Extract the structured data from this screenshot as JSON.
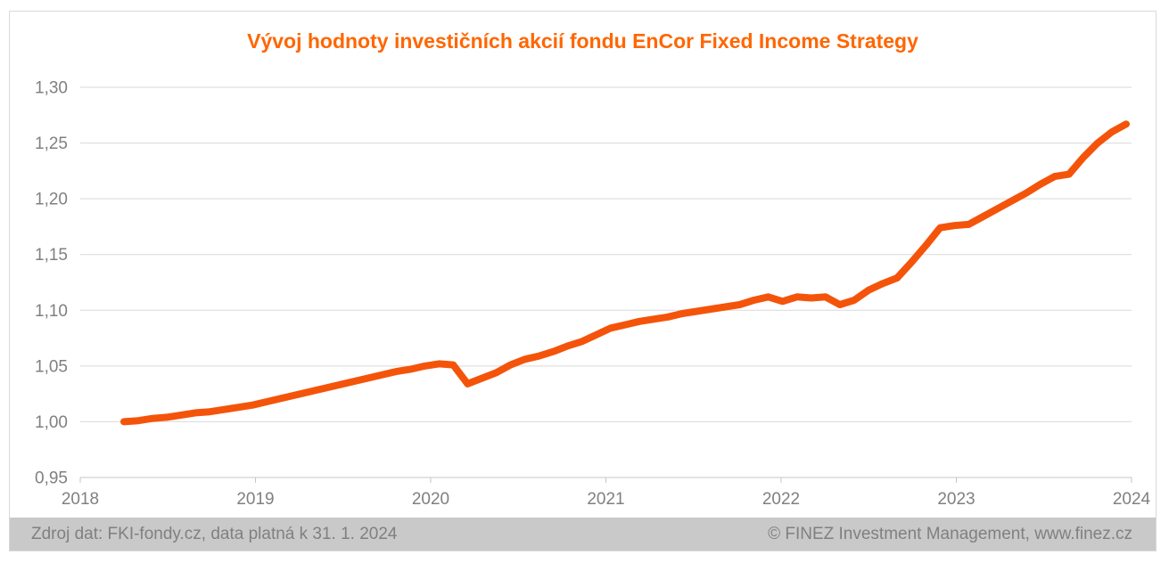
{
  "title": "Vývoj hodnoty investičních akcií fondu EnCor Fixed Income Strategy",
  "footer": {
    "source": "Zdroj dat: FKI-fondy.cz, data platná k 31. 1. 2024",
    "copyright": "© FINEZ Investment Management, www.finez.cz"
  },
  "colors": {
    "title": "#FF6600",
    "line": "#F4540A",
    "gridline": "#D9D9D9",
    "axis_line": "#C6C6C6",
    "axis_text": "#808080",
    "footer_bg": "#C9C9C9",
    "footer_text": "#808080"
  },
  "chart_data": {
    "type": "line",
    "title": "Vývoj hodnoty investičních akcií fondu EnCor Fixed Income Strategy",
    "xlabel": "",
    "ylabel": "",
    "ylim": [
      0.95,
      1.3
    ],
    "ytick_step": 0.05,
    "yticklabels": [
      "1,30",
      "1,25",
      "1,20",
      "1,15",
      "1,10",
      "1,05",
      "1,00",
      "0,95"
    ],
    "xticklabels": [
      "2018",
      "2019",
      "2020",
      "2021",
      "2022",
      "2023",
      "2024"
    ],
    "grid": "horizontal",
    "legend": "none",
    "x_monthly": [
      "2018-03",
      "2018-04",
      "2018-05",
      "2018-06",
      "2018-07",
      "2018-08",
      "2018-09",
      "2018-10",
      "2018-11",
      "2018-12",
      "2019-01",
      "2019-02",
      "2019-03",
      "2019-04",
      "2019-05",
      "2019-06",
      "2019-07",
      "2019-08",
      "2019-09",
      "2019-10",
      "2019-11",
      "2019-12",
      "2020-01",
      "2020-02",
      "2020-03",
      "2020-04",
      "2020-05",
      "2020-06",
      "2020-07",
      "2020-08",
      "2020-09",
      "2020-10",
      "2020-11",
      "2020-12",
      "2021-01",
      "2021-02",
      "2021-03",
      "2021-04",
      "2021-05",
      "2021-06",
      "2021-07",
      "2021-08",
      "2021-09",
      "2021-10",
      "2021-11",
      "2021-12",
      "2022-01",
      "2022-02",
      "2022-03",
      "2022-04",
      "2022-05",
      "2022-06",
      "2022-07",
      "2022-08",
      "2022-09",
      "2022-10",
      "2022-11",
      "2022-12",
      "2023-01",
      "2023-02",
      "2023-03",
      "2023-04",
      "2023-05",
      "2023-06",
      "2023-07",
      "2023-08",
      "2023-09",
      "2023-10",
      "2023-11",
      "2023-12",
      "2024-01"
    ],
    "values": [
      1.0,
      1.001,
      1.003,
      1.004,
      1.006,
      1.008,
      1.009,
      1.011,
      1.013,
      1.015,
      1.018,
      1.021,
      1.024,
      1.027,
      1.03,
      1.033,
      1.036,
      1.039,
      1.042,
      1.045,
      1.047,
      1.05,
      1.052,
      1.051,
      1.034,
      1.039,
      1.044,
      1.051,
      1.056,
      1.059,
      1.063,
      1.068,
      1.072,
      1.078,
      1.084,
      1.087,
      1.09,
      1.092,
      1.094,
      1.097,
      1.099,
      1.101,
      1.103,
      1.105,
      1.109,
      1.112,
      1.108,
      1.112,
      1.111,
      1.112,
      1.105,
      1.109,
      1.118,
      1.124,
      1.129,
      1.143,
      1.158,
      1.174,
      1.176,
      1.177,
      1.184,
      1.191,
      1.198,
      1.205,
      1.213,
      1.22,
      1.222,
      1.237,
      1.25,
      1.26,
      1.267
    ]
  }
}
